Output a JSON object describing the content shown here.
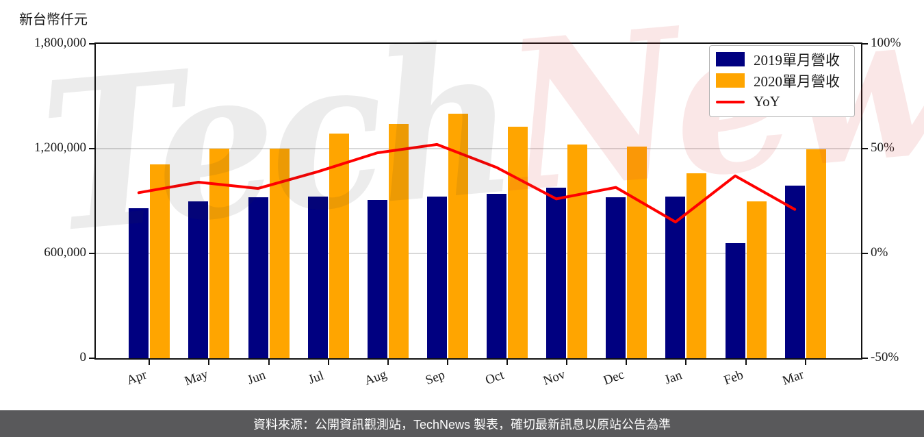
{
  "header": {
    "unit_label": "新台幣仟元"
  },
  "watermark": {
    "part1": "Tech",
    "part2": "News"
  },
  "legend": {
    "items": [
      {
        "label": "2019單月營收",
        "color": "#000080",
        "type": "bar"
      },
      {
        "label": "2020單月營收",
        "color": "#FFA500",
        "type": "bar"
      },
      {
        "label": "YoY",
        "color": "#FF0000",
        "type": "line"
      }
    ]
  },
  "footer": {
    "source_text": "資料來源：公開資訊觀測站，TechNews 製表，確切最新訊息以原站公告為準"
  },
  "chart_data": {
    "type": "bar+line",
    "title": "",
    "categories": [
      "Apr",
      "May",
      "Jun",
      "Jul",
      "Aug",
      "Sep",
      "Oct",
      "Nov",
      "Dec",
      "Jan",
      "Feb",
      "Mar"
    ],
    "series": [
      {
        "name": "2019單月營收",
        "type": "bar",
        "axis": "left",
        "color": "#000080",
        "values": [
          860000,
          900000,
          920000,
          925000,
          905000,
          925000,
          940000,
          975000,
          920000,
          925000,
          660000,
          990000
        ]
      },
      {
        "name": "2020單月營收",
        "type": "bar",
        "axis": "left",
        "color": "#FFA500",
        "values": [
          1110000,
          1200000,
          1200000,
          1285000,
          1340000,
          1400000,
          1325000,
          1225000,
          1210000,
          1060000,
          900000,
          1195000
        ]
      },
      {
        "name": "YoY",
        "type": "line",
        "axis": "right",
        "color": "#FF0000",
        "values": [
          29,
          34,
          31,
          39,
          48,
          52,
          41,
          26,
          31.5,
          15,
          37,
          21
        ]
      }
    ],
    "left_axis": {
      "label": "新台幣仟元",
      "min": 0,
      "max": 1800000,
      "ticks": [
        {
          "value": 0,
          "label": "0"
        },
        {
          "value": 600000,
          "label": "600,000"
        },
        {
          "value": 1200000,
          "label": "1,200,000"
        },
        {
          "value": 1800000,
          "label": "1,800,000"
        }
      ],
      "gridlines": [
        600000,
        1200000
      ]
    },
    "right_axis": {
      "min": -50,
      "max": 100,
      "ticks": [
        {
          "value": -50,
          "label": "-50%"
        },
        {
          "value": 0,
          "label": "0%"
        },
        {
          "value": 50,
          "label": "50%"
        },
        {
          "value": 100,
          "label": "100%"
        }
      ]
    },
    "legend_position": "upper right",
    "grid": "horizontal"
  }
}
